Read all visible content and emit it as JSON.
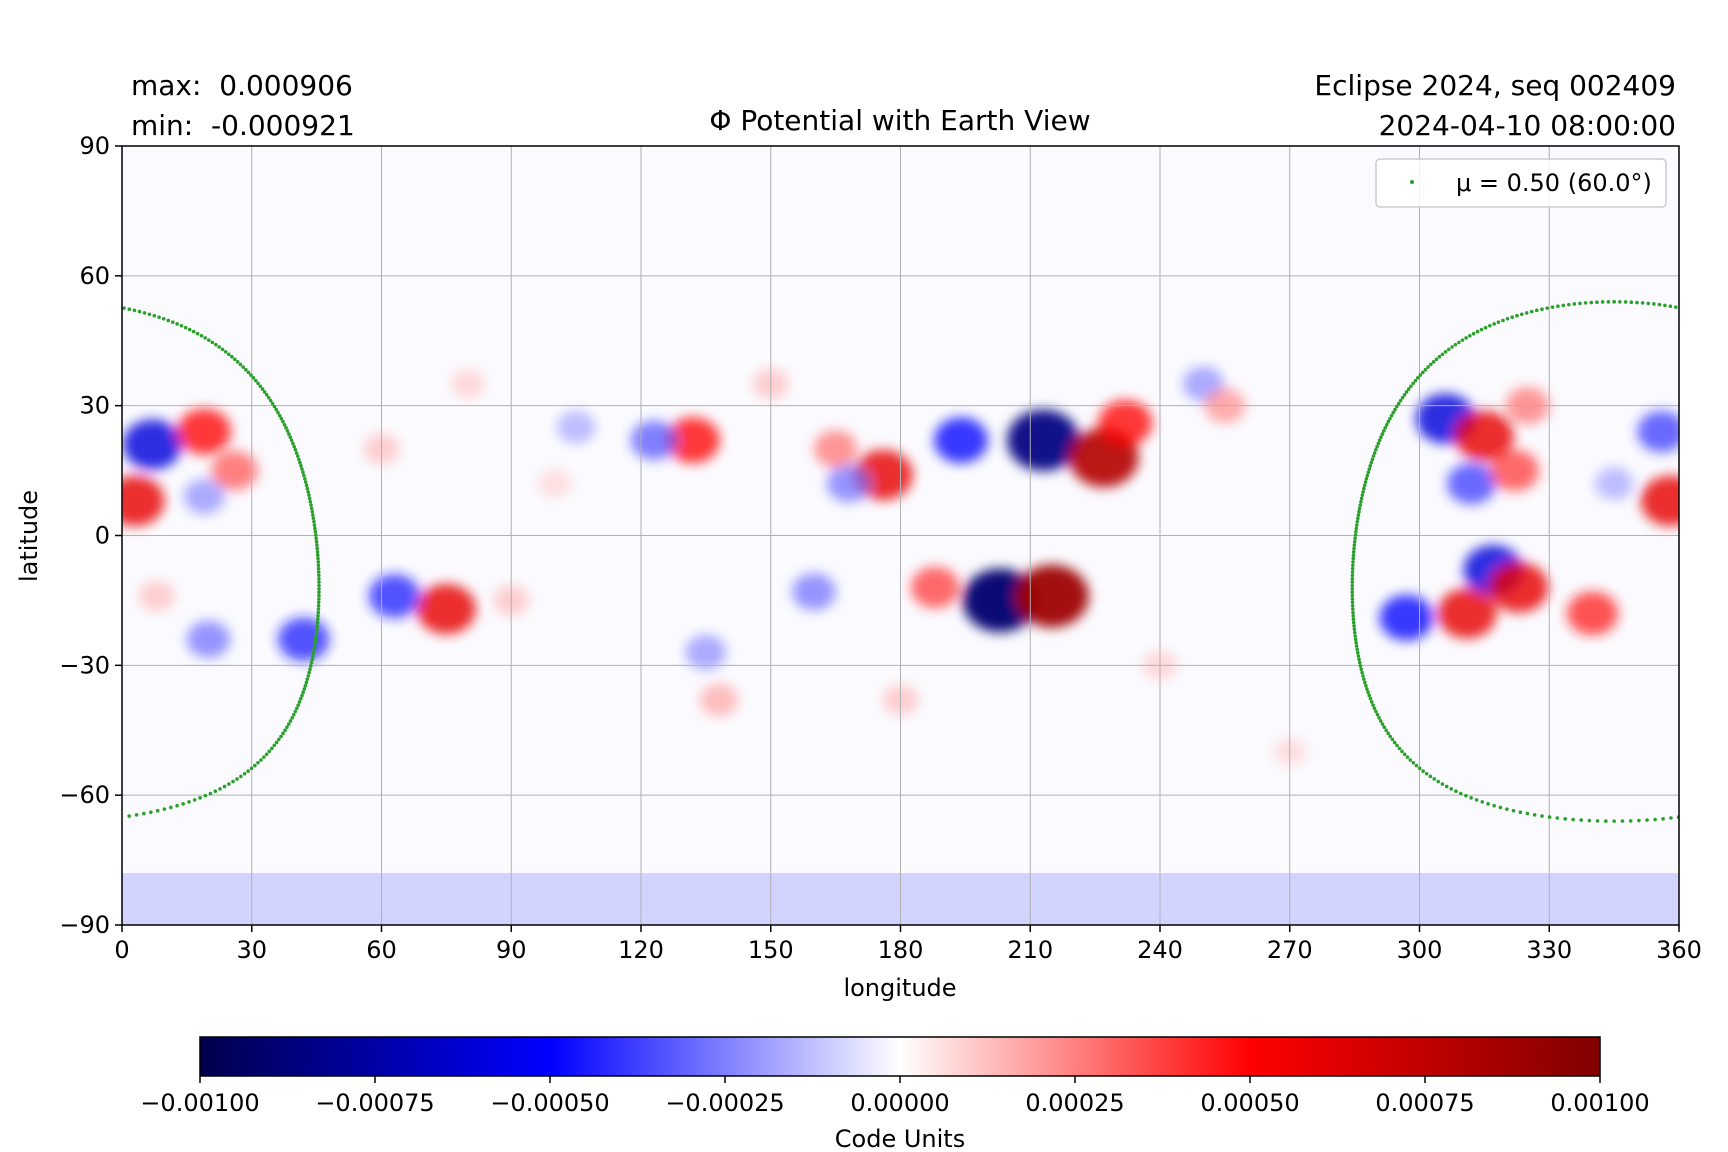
{
  "chart_data": {
    "type": "heatmap",
    "title": "Φ Potential with Earth View",
    "stats": {
      "max_label": "max:",
      "max_value": "0.000906",
      "min_label": "min:",
      "min_value": "-0.000921"
    },
    "run_info": {
      "line1": "Eclipse 2024, seq 002409",
      "line2": "2024-04-10 08:00:00"
    },
    "xlabel": "longitude",
    "ylabel": "latitude",
    "xlim": [
      0,
      360
    ],
    "ylim": [
      -90,
      90
    ],
    "xticks": [
      0,
      30,
      60,
      90,
      120,
      150,
      180,
      210,
      240,
      270,
      300,
      330,
      360
    ],
    "xtick_labels": [
      "0",
      "30",
      "60",
      "90",
      "120",
      "150",
      "180",
      "210",
      "240",
      "270",
      "300",
      "330",
      "360"
    ],
    "yticks": [
      90,
      60,
      30,
      0,
      -30,
      -60,
      -90
    ],
    "ytick_labels": [
      "90",
      "60",
      "30",
      "0",
      "−30",
      "−60",
      "−90"
    ],
    "grid": true,
    "colormap": "seismic",
    "colormap_stops": [
      "#00004c",
      "#0000ff",
      "#ffffff",
      "#ff0000",
      "#800000"
    ],
    "colorbar": {
      "label": "Code Units",
      "range": [
        -0.001,
        0.001
      ],
      "ticks": [
        -0.001,
        -0.00075,
        -0.0005,
        -0.00025,
        0,
        0.00025,
        0.0005,
        0.00075,
        0.001
      ],
      "tick_labels": [
        "−0.00100",
        "−0.00075",
        "−0.00050",
        "−0.00025",
        "0.00000",
        "0.00025",
        "0.00050",
        "0.00075",
        "0.00100"
      ]
    },
    "legend": {
      "placement": "top-right",
      "entry": "μ = 0.50 (60.0°)",
      "color": "#2ca02c"
    },
    "earth_view_contour": {
      "color": "#2ca02c",
      "center_lon": 345,
      "center_lat": -6,
      "angular_radius_deg": 60
    },
    "field_features": [
      {
        "lon": 213,
        "lat": 22,
        "value": -0.00085
      },
      {
        "lon": 227,
        "lat": 18,
        "value": 0.0008
      },
      {
        "lon": 203,
        "lat": -15,
        "value": -0.0009
      },
      {
        "lon": 215,
        "lat": -14,
        "value": 0.00088
      },
      {
        "lon": 194,
        "lat": 22,
        "value": -0.0005
      },
      {
        "lon": 176,
        "lat": 14,
        "value": 0.0006
      },
      {
        "lon": 168,
        "lat": 12,
        "value": -0.0003
      },
      {
        "lon": 165,
        "lat": 20,
        "value": 0.0003
      },
      {
        "lon": 188,
        "lat": -12,
        "value": 0.0004
      },
      {
        "lon": 160,
        "lat": -13,
        "value": -0.0003
      },
      {
        "lon": 132,
        "lat": 22,
        "value": 0.0005
      },
      {
        "lon": 123,
        "lat": 22,
        "value": -0.00035
      },
      {
        "lon": 250,
        "lat": 35,
        "value": -0.00025
      },
      {
        "lon": 105,
        "lat": 25,
        "value": -0.0002
      },
      {
        "lon": 7,
        "lat": 21,
        "value": -0.0006
      },
      {
        "lon": 3,
        "lat": 8,
        "value": 0.0006
      },
      {
        "lon": 19,
        "lat": 24,
        "value": 0.0005
      },
      {
        "lon": 26,
        "lat": 15,
        "value": 0.00035
      },
      {
        "lon": 19,
        "lat": 9,
        "value": -0.00025
      },
      {
        "lon": 75,
        "lat": -17,
        "value": 0.0006
      },
      {
        "lon": 63,
        "lat": -14,
        "value": -0.00045
      },
      {
        "lon": 42,
        "lat": -24,
        "value": -0.00045
      },
      {
        "lon": 20,
        "lat": -24,
        "value": -0.0003
      },
      {
        "lon": 8,
        "lat": -14,
        "value": 0.00015
      },
      {
        "lon": 306,
        "lat": 27,
        "value": -0.0006
      },
      {
        "lon": 312,
        "lat": 12,
        "value": -0.0004
      },
      {
        "lon": 315,
        "lat": 23,
        "value": 0.0006
      },
      {
        "lon": 322,
        "lat": 15,
        "value": 0.0004
      },
      {
        "lon": 358,
        "lat": 8,
        "value": 0.0006
      },
      {
        "lon": 356,
        "lat": 24,
        "value": -0.0004
      },
      {
        "lon": 317,
        "lat": -8,
        "value": -0.0006
      },
      {
        "lon": 311,
        "lat": -18,
        "value": 0.0006
      },
      {
        "lon": 297,
        "lat": -19,
        "value": -0.0005
      },
      {
        "lon": 323,
        "lat": -12,
        "value": 0.0006
      },
      {
        "lon": 340,
        "lat": -18,
        "value": 0.00045
      },
      {
        "lon": 345,
        "lat": 12,
        "value": -0.0002
      },
      {
        "lon": 325,
        "lat": 30,
        "value": 0.0003
      },
      {
        "lon": 138,
        "lat": -38,
        "value": 0.0002
      },
      {
        "lon": 135,
        "lat": -27,
        "value": -0.00025
      },
      {
        "lon": 255,
        "lat": 30,
        "value": 0.00025
      },
      {
        "lon": 232,
        "lat": 26,
        "value": 0.0005
      },
      {
        "lon": 90,
        "lat": -15,
        "value": 0.00015
      },
      {
        "lon": 100,
        "lat": 12,
        "value": 0.0001
      },
      {
        "lon": 180,
        "lat": -38,
        "value": 0.00015
      },
      {
        "lon": 240,
        "lat": -30,
        "value": 0.00012
      },
      {
        "lon": 60,
        "lat": 20,
        "value": 0.00015
      },
      {
        "lon": 80,
        "lat": 35,
        "value": 0.00012
      },
      {
        "lon": 150,
        "lat": 35,
        "value": 0.00015
      },
      {
        "lon": 270,
        "lat": -50,
        "value": 0.0001
      }
    ],
    "polar_band": {
      "lat_min": -90,
      "lat_max": -78,
      "value": -0.00012
    }
  }
}
